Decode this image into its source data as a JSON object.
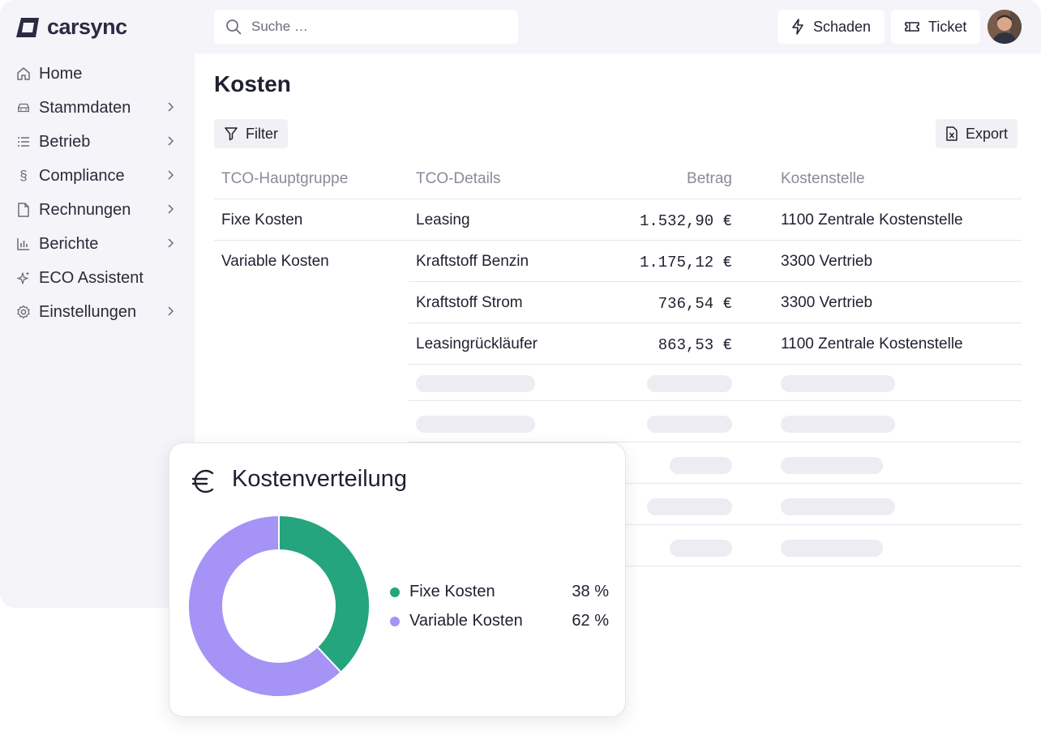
{
  "brand": {
    "name": "carsync",
    "color": "#2a2a45"
  },
  "search": {
    "placeholder": "Suche …"
  },
  "header": {
    "buttons": [
      {
        "label": "Schaden",
        "icon": "lightning-icon"
      },
      {
        "label": "Ticket",
        "icon": "ticket-icon"
      }
    ]
  },
  "sidebar": {
    "items": [
      {
        "label": "Home",
        "icon": "home-icon",
        "has_chevron": false
      },
      {
        "label": "Stammdaten",
        "icon": "car-icon",
        "has_chevron": true
      },
      {
        "label": "Betrieb",
        "icon": "list-icon",
        "has_chevron": true
      },
      {
        "label": "Compliance",
        "icon": "paragraph-icon",
        "has_chevron": true
      },
      {
        "label": "Rechnungen",
        "icon": "document-icon",
        "has_chevron": true
      },
      {
        "label": "Berichte",
        "icon": "bar-chart-icon",
        "has_chevron": true
      },
      {
        "label": "ECO Assistent",
        "icon": "sparkle-icon",
        "has_chevron": false
      },
      {
        "label": "Einstellungen",
        "icon": "gear-icon",
        "has_chevron": true
      }
    ]
  },
  "page": {
    "title": "Kosten",
    "filter_label": "Filter",
    "export_label": "Export"
  },
  "table": {
    "headers": [
      "TCO-Hauptgruppe",
      "TCO-Details",
      "Betrag",
      "Kostenstelle"
    ],
    "rows": [
      {
        "group": "Fixe Kosten",
        "detail": "Leasing",
        "amount": "1.532,90 €",
        "cost_center": "1100 Zentrale Kostenstelle"
      },
      {
        "group": "Variable Kosten",
        "detail": "Kraftstoff Benzin",
        "amount": "1.175,12 €",
        "cost_center": "3300 Vertrieb"
      },
      {
        "group": "",
        "detail": "Kraftstoff Strom",
        "amount": "736,54 €",
        "cost_center": "3300 Vertrieb"
      },
      {
        "group": "",
        "detail": "Leasingrückläufer",
        "amount": "863,53 €",
        "cost_center": "1100 Zentrale Kostenstelle"
      }
    ]
  },
  "distribution_card": {
    "title": "Kostenverteilung",
    "icon": "euro-icon",
    "legend": [
      {
        "name": "Fixe Kosten",
        "value_label": "38 %",
        "color": "#25a57d"
      },
      {
        "name": "Variable Kosten",
        "value_label": "62 %",
        "color": "#a593f6"
      }
    ]
  },
  "chart_data": {
    "type": "pie",
    "title": "Kostenverteilung",
    "categories": [
      "Fixe Kosten",
      "Variable Kosten"
    ],
    "values": [
      38,
      62
    ],
    "colors": [
      "#25a57d",
      "#a593f6"
    ],
    "legend": "right"
  }
}
